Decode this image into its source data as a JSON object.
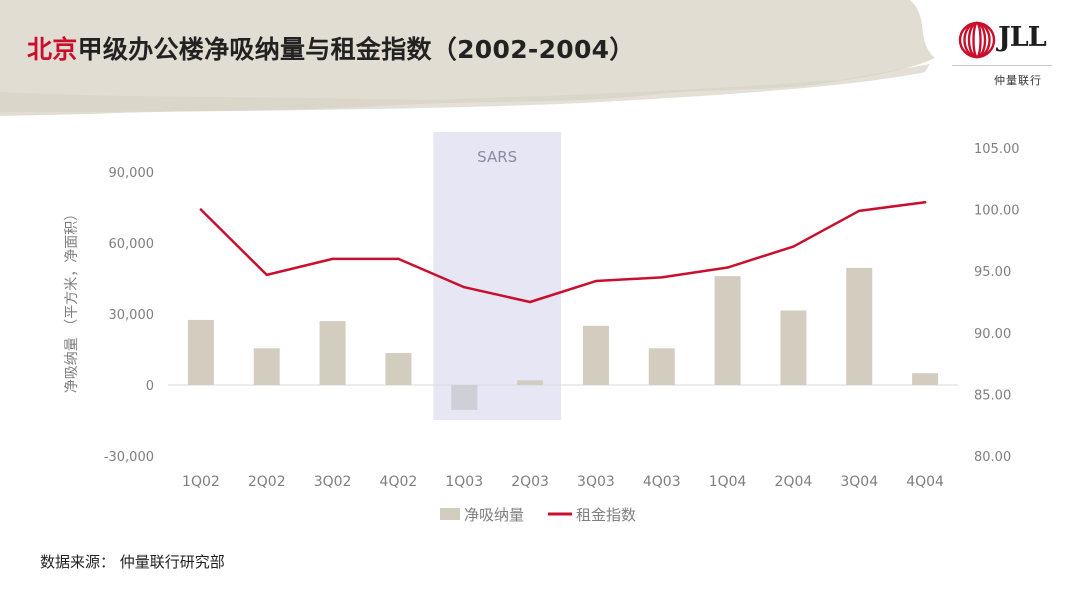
{
  "slide": {
    "title_accent": "北京",
    "title_main": "甲级办公楼净吸纳量与租金指数（2002-2004）",
    "source": "数据来源： 仲量联行研究部"
  },
  "logo": {
    "text": "JLL",
    "subtitle": "仲量联行",
    "color": "#c8102e"
  },
  "chart_data": {
    "type": "bar",
    "categories": [
      "1Q02",
      "2Q02",
      "3Q02",
      "4Q02",
      "1Q03",
      "2Q03",
      "3Q03",
      "4Q03",
      "1Q04",
      "2Q04",
      "3Q04",
      "4Q04"
    ],
    "series": [
      {
        "name": "净吸纳量",
        "type": "bar",
        "axis": "left",
        "color": "#d3cdc0",
        "values": [
          27500,
          15500,
          27000,
          13500,
          -10500,
          2000,
          25000,
          15500,
          46000,
          31500,
          49500,
          5000
        ]
      },
      {
        "name": "租金指数",
        "type": "line",
        "axis": "right",
        "color": "#c8102e",
        "values": [
          100.0,
          94.7,
          96.0,
          96.0,
          93.7,
          92.5,
          94.2,
          94.5,
          95.3,
          97.0,
          99.9,
          100.6
        ]
      }
    ],
    "y_left": {
      "label": "净吸纳量 （平方米，净面积）",
      "range": [
        -30000,
        90000
      ],
      "ticks": [
        "90,000",
        "60,000",
        "30,000",
        "0",
        "-30,000"
      ],
      "tick_values": [
        90000,
        60000,
        30000,
        0,
        -30000
      ]
    },
    "y_right": {
      "range": [
        80,
        105
      ],
      "ticks": [
        "105.00",
        "100.00",
        "95.00",
        "90.00",
        "85.00",
        "80.00"
      ],
      "tick_values": [
        105,
        100,
        95,
        90,
        85,
        80
      ]
    },
    "annotation": {
      "text": "SARS",
      "from_category": "1Q03",
      "to_category": "2Q03",
      "color": "#e6e6f4"
    },
    "legend": {
      "position": "bottom"
    },
    "grid": false
  }
}
